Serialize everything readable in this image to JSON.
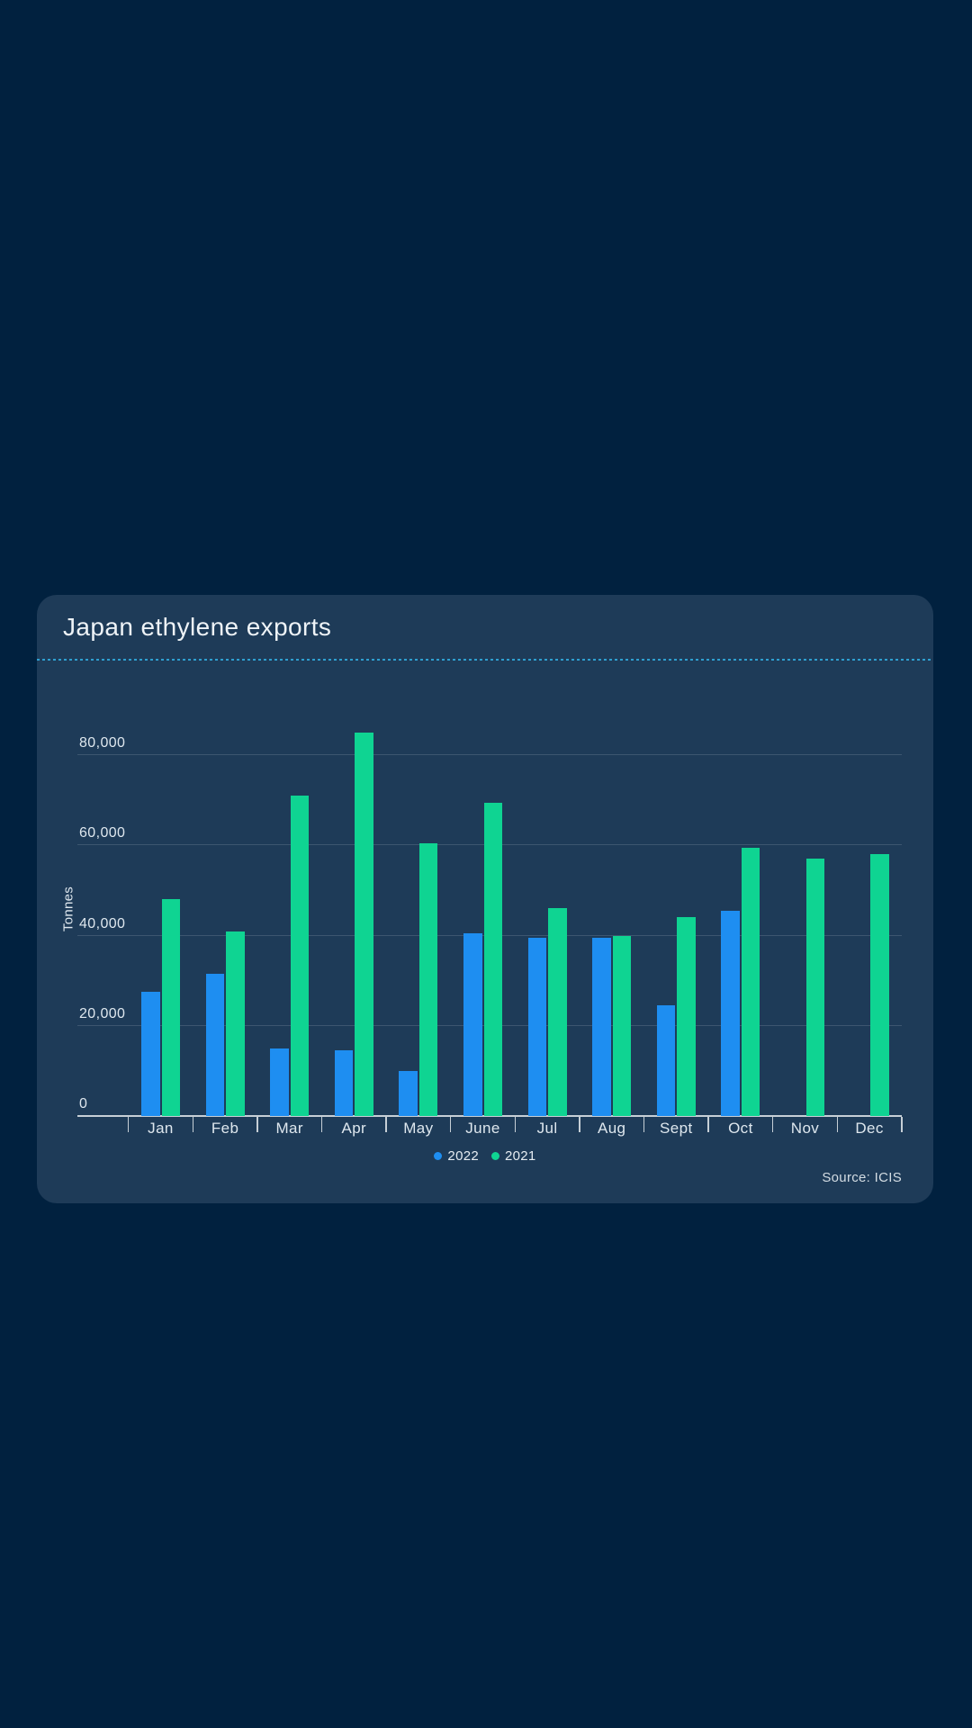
{
  "colors": {
    "page_background": "#01213F",
    "card_background": "#1E3B58",
    "divider": "#2E9FD0",
    "series_2022": "#1E8EF1",
    "series_2021": "#0FD492",
    "axis": "#C6CFD6",
    "label_text": "#DEE7EE"
  },
  "header": {
    "title": "Japan ethylene exports"
  },
  "chart_data": {
    "type": "bar",
    "title": "Japan ethylene exports",
    "xlabel": "",
    "ylabel": "Tonnes",
    "ylim": [
      0,
      86000
    ],
    "grid": true,
    "legend_position": "bottom-center",
    "source_label": "Source: ICIS",
    "yticks": [
      0,
      20000,
      40000,
      60000,
      80000
    ],
    "ytick_labels": [
      "0",
      "20,000",
      "40,000",
      "60,000",
      "80,000"
    ],
    "categories": [
      "Jan",
      "Feb",
      "Mar",
      "Apr",
      "May",
      "June",
      "Jul",
      "Aug",
      "Sept",
      "Oct",
      "Nov",
      "Dec"
    ],
    "series": [
      {
        "name": "2022",
        "color": "#1E8EF1",
        "values": [
          27500,
          31500,
          15000,
          14500,
          10000,
          40500,
          39500,
          39500,
          24500,
          45500,
          null,
          null
        ]
      },
      {
        "name": "2021",
        "color": "#0FD492",
        "values": [
          48000,
          41000,
          71000,
          85000,
          60500,
          69500,
          46000,
          40000,
          44000,
          59500,
          57000,
          58000
        ]
      }
    ]
  }
}
